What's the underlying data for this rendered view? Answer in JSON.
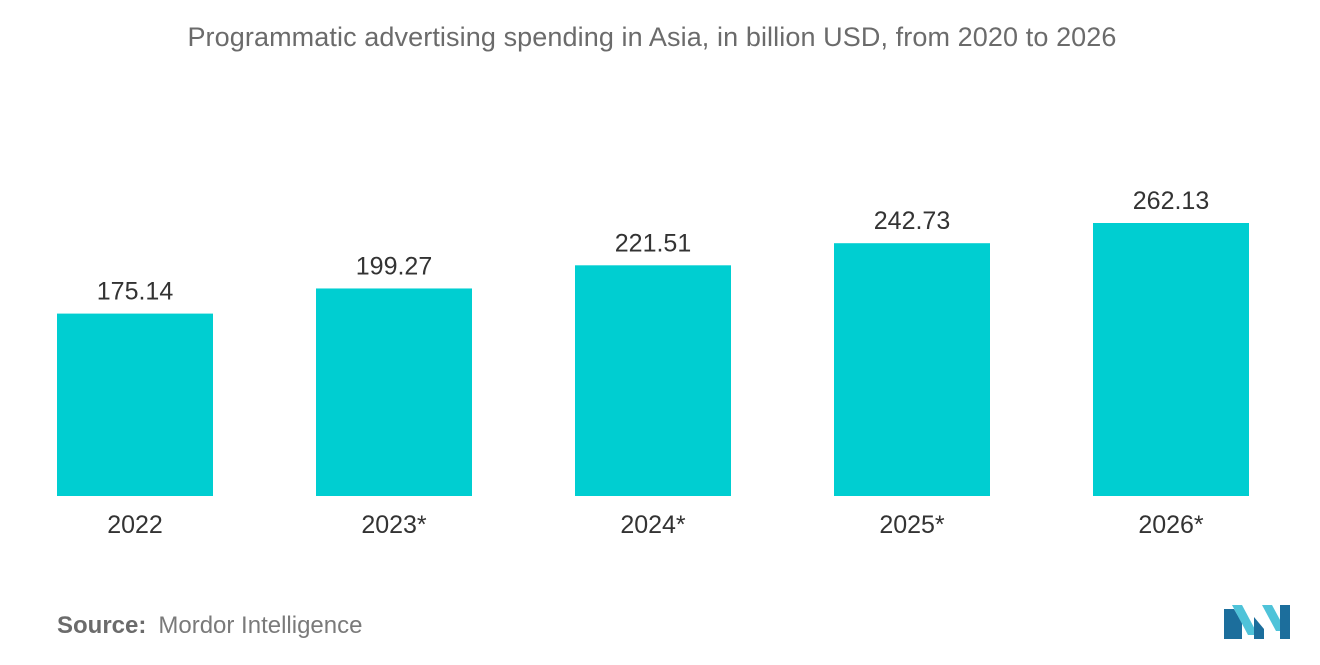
{
  "chart_data": {
    "type": "bar",
    "title": "Programmatic advertising spending in Asia, in billion USD, from 2020 to 2026",
    "xlabel": "",
    "ylabel": "",
    "categories": [
      "2022",
      "2023*",
      "2024*",
      "2025*",
      "2026*"
    ],
    "values": [
      175.14,
      199.27,
      221.51,
      242.73,
      262.13
    ],
    "value_labels": [
      "175.14",
      "199.27",
      "221.51",
      "242.73",
      "262.13"
    ],
    "ylim": [
      0,
      262.13
    ],
    "grid": false,
    "legend": "none",
    "bar_color": "#00ced1"
  },
  "source": {
    "label": "Source:",
    "text": "Mordor Intelligence"
  },
  "colors": {
    "bar": "#00ced1",
    "logo_dark": "#1c6e9c",
    "logo_light": "#4fc3d9"
  }
}
